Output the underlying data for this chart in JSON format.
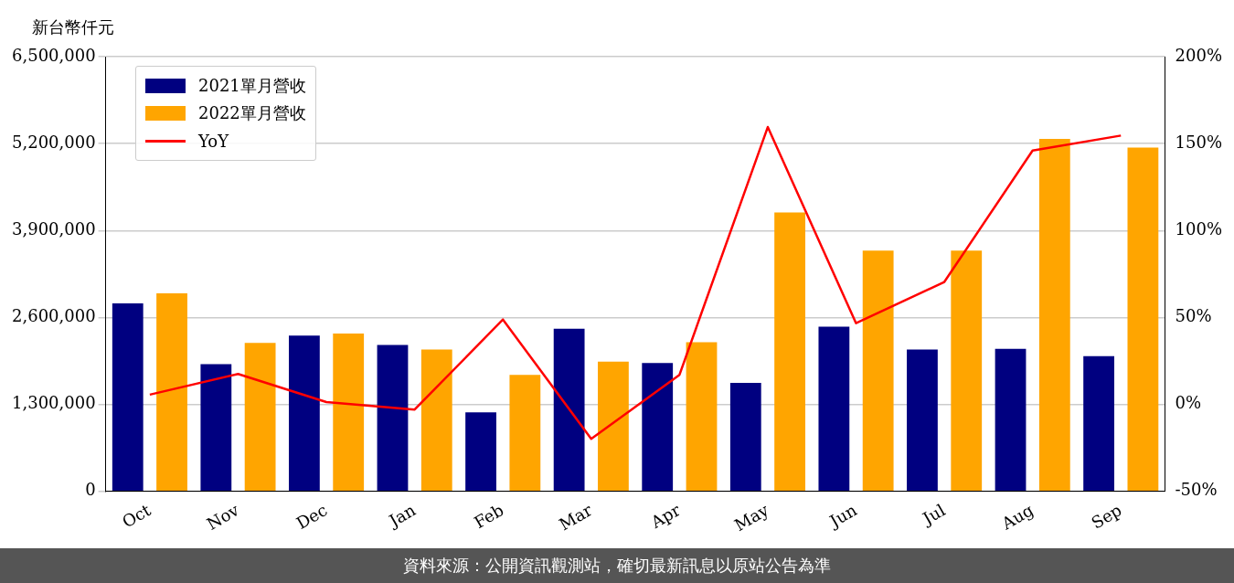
{
  "chart_data": {
    "type": "bar",
    "ylabel": "新台幣仟元",
    "categories": [
      "Oct",
      "Nov",
      "Dec",
      "Jan",
      "Feb",
      "Mar",
      "Apr",
      "May",
      "Jun",
      "Jul",
      "Aug",
      "Sep"
    ],
    "series": [
      {
        "name": "2021單月營收",
        "color": "#000080",
        "values": [
          2810000,
          1900000,
          2330000,
          2190000,
          1180000,
          2430000,
          1920000,
          1620000,
          2460000,
          2120000,
          2130000,
          2020000
        ]
      },
      {
        "name": "2022單月營收",
        "color": "#ffa500",
        "values": [
          2960000,
          2220000,
          2360000,
          2120000,
          1740000,
          1940000,
          2230000,
          4170000,
          3600000,
          3600000,
          5270000,
          5140000
        ]
      },
      {
        "name": "YoY",
        "type": "line",
        "axis": "y2",
        "color": "#ff0000",
        "values": [
          5.6,
          17.5,
          1.3,
          -3,
          48.8,
          -19.8,
          17,
          159.5,
          46.7,
          70.4,
          146,
          154.6
        ]
      }
    ],
    "ylim": [
      0,
      6500000
    ],
    "yticks": [
      {
        "value": 0,
        "label": "0"
      },
      {
        "value": 1300000,
        "label": "1,300,000"
      },
      {
        "value": 2600000,
        "label": "2,600,000"
      },
      {
        "value": 3900000,
        "label": "3,900,000"
      },
      {
        "value": 5200000,
        "label": "5,200,000"
      },
      {
        "value": 6500000,
        "label": "6,500,000"
      }
    ],
    "y2lim": [
      -50,
      200
    ],
    "y2ticks": [
      {
        "value": -50,
        "label": "-50%"
      },
      {
        "value": 0,
        "label": "0%"
      },
      {
        "value": 50,
        "label": "50%"
      },
      {
        "value": 100,
        "label": "100%"
      },
      {
        "value": 150,
        "label": "150%"
      },
      {
        "value": 200,
        "label": "200%"
      }
    ],
    "grid": "y",
    "legend": "top left",
    "marker": "none",
    "annotations": [
      "資料來源：公開資訊觀測站，確切最新訊息以原站公告為準"
    ]
  }
}
